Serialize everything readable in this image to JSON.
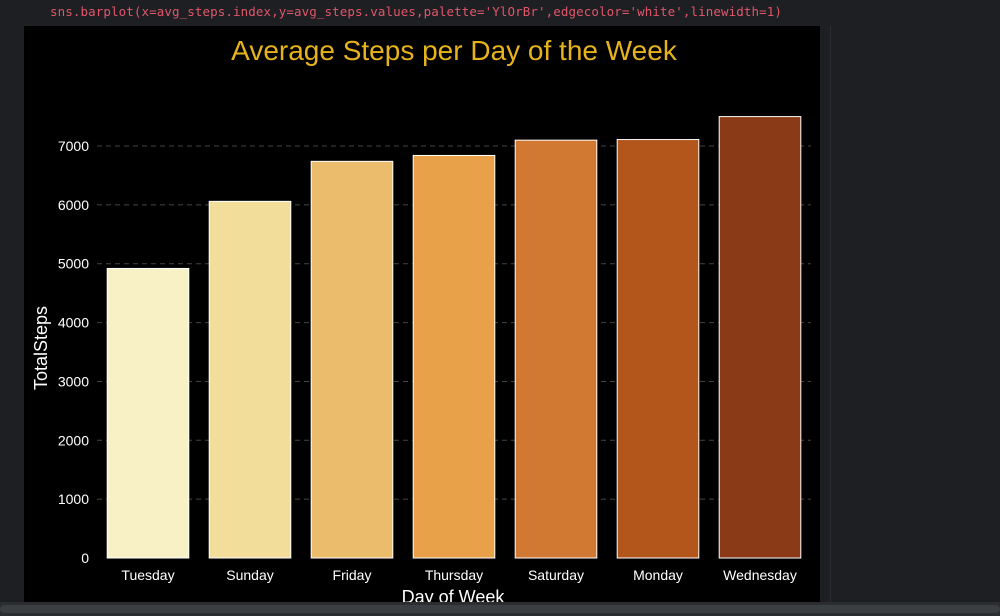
{
  "code": {
    "line": "sns.barplot(x=avg_steps.index,y=avg_steps.values,palette='YlOrBr',edgecolor='white',linewidth=1)"
  },
  "chart_data": {
    "type": "bar",
    "title": "Average Steps per Day of the Week",
    "xlabel": "Day of Week",
    "ylabel": "TotalSteps",
    "categories": [
      "Tuesday",
      "Sunday",
      "Friday",
      "Thursday",
      "Saturday",
      "Monday",
      "Wednesday"
    ],
    "values": [
      4920,
      6060,
      6740,
      6840,
      7100,
      7110,
      7500
    ],
    "ylim": [
      0,
      7850
    ],
    "yticks": [
      0,
      1000,
      2000,
      3000,
      4000,
      5000,
      6000,
      7000
    ],
    "grid": "horizontal dashed",
    "colors": {
      "background": "#000000",
      "title": "#e7b31a",
      "text": "#ffffff",
      "grid": "#444444",
      "edge": "#ffffff",
      "bars": [
        "#f9f1c6",
        "#f2dd9b",
        "#ebbc6b",
        "#e8a049",
        "#d17833",
        "#b3561c",
        "#8a3a17"
      ]
    }
  }
}
